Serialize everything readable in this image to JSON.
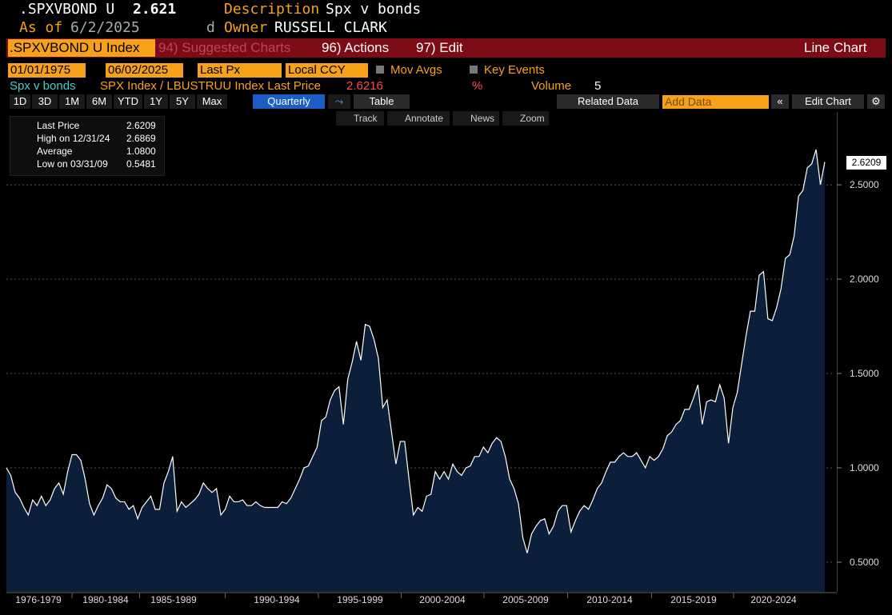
{
  "header": {
    "ticker": ".SPXVBOND U",
    "price": "2.621",
    "desc_label": "Description",
    "desc": "Spx v bonds",
    "asof_label": "As of",
    "asof": "6/2/2025",
    "flag": "d",
    "owner_label": "Owner",
    "owner": "RUSSELL CLARK"
  },
  "toolbar": {
    "security": ".SPXVBOND U Index",
    "suggested": "94) Suggested Charts",
    "actions": "96) Actions",
    "edit": "97) Edit",
    "chart_type": "Line Chart"
  },
  "controls": {
    "start": "01/01/1975",
    "end": "06/02/2025",
    "field": "Last Px",
    "ccy": "Local CCY",
    "mov_avgs": "Mov Avgs",
    "key_events": "Key Events"
  },
  "legend": {
    "name": "Spx v bonds",
    "desc": "SPX Index / LBUSTRUU Index Last Price",
    "last": "2.6216",
    "pct": "%",
    "volume_label": "Volume",
    "volume": "5"
  },
  "periods": [
    "1D",
    "3D",
    "1M",
    "6M",
    "YTD",
    "1Y",
    "5Y",
    "Max"
  ],
  "buttons": {
    "frequency": "Quarterly",
    "table": "Table",
    "related": "Related Data",
    "add": "Add Data",
    "edit_chart": "Edit Chart"
  },
  "tools": [
    "Track",
    "Annotate",
    "News",
    "Zoom"
  ],
  "stats": {
    "rows": [
      {
        "label": "Last Price",
        "value": "2.6209"
      },
      {
        "label": "High on 12/31/24",
        "value": "2.6869"
      },
      {
        "label": "Average",
        "value": "1.0800"
      },
      {
        "label": "Low on 03/31/09",
        "value": "0.5481"
      }
    ]
  },
  "chart_data": {
    "type": "line",
    "color": "#ffffff",
    "fill": "#0b1f3a",
    "values": [
      1.0,
      0.96,
      0.87,
      0.84,
      0.79,
      0.75,
      0.83,
      0.8,
      0.85,
      0.8,
      0.83,
      0.89,
      0.92,
      0.86,
      0.98,
      1.07,
      1.07,
      1.04,
      0.94,
      0.81,
      0.75,
      0.8,
      0.84,
      0.91,
      0.89,
      0.84,
      0.82,
      0.82,
      0.78,
      0.8,
      0.73,
      0.79,
      0.82,
      0.85,
      0.78,
      0.78,
      0.92,
      0.98,
      1.06,
      0.77,
      0.82,
      0.79,
      0.81,
      0.83,
      0.86,
      0.92,
      0.89,
      0.87,
      0.89,
      0.75,
      0.78,
      0.85,
      0.82,
      0.82,
      0.83,
      0.8,
      0.8,
      0.82,
      0.8,
      0.79,
      0.79,
      0.79,
      0.79,
      0.82,
      0.81,
      0.84,
      0.89,
      0.94,
      1.0,
      1.01,
      1.06,
      1.11,
      1.25,
      1.27,
      1.36,
      1.41,
      1.43,
      1.23,
      1.47,
      1.56,
      1.67,
      1.57,
      1.76,
      1.75,
      1.68,
      1.58,
      1.32,
      1.36,
      1.19,
      1.02,
      1.14,
      1.14,
      0.94,
      0.75,
      0.79,
      0.77,
      0.85,
      0.86,
      0.98,
      0.94,
      0.98,
      0.94,
      1.02,
      0.98,
      0.96,
      1.0,
      1.01,
      1.06,
      1.06,
      1.11,
      1.08,
      1.13,
      1.16,
      1.14,
      1.06,
      0.94,
      0.89,
      0.81,
      0.63,
      0.5481,
      0.65,
      0.69,
      0.72,
      0.73,
      0.65,
      0.69,
      0.77,
      0.8,
      0.8,
      0.66,
      0.72,
      0.77,
      0.8,
      0.78,
      0.83,
      0.89,
      0.92,
      0.98,
      1.03,
      1.03,
      1.06,
      1.08,
      1.06,
      1.06,
      1.08,
      1.04,
      1.0,
      1.06,
      1.04,
      1.06,
      1.1,
      1.17,
      1.19,
      1.23,
      1.25,
      1.31,
      1.31,
      1.37,
      1.44,
      1.23,
      1.35,
      1.36,
      1.35,
      1.44,
      1.37,
      1.13,
      1.32,
      1.4,
      1.55,
      1.7,
      1.83,
      1.83,
      2.02,
      2.04,
      1.79,
      1.78,
      1.85,
      1.95,
      2.11,
      2.13,
      2.23,
      2.44,
      2.47,
      2.59,
      2.61,
      2.6869,
      2.5,
      2.6209
    ],
    "ylim": [
      0.343,
      2.886
    ],
    "yticks": [
      {
        "value": 0.5,
        "label": "0.5000"
      },
      {
        "value": 1.0,
        "label": "1.0000"
      },
      {
        "value": 1.5,
        "label": "1.5000"
      },
      {
        "value": 2.0,
        "label": "2.0000"
      },
      {
        "value": 2.5,
        "label": "2.5000"
      }
    ],
    "xtick_labels": [
      "1976-1979",
      "1980-1984",
      "1985-1989",
      "1990-1994",
      "1995-1999",
      "2000-2004",
      "2005-2009",
      "2010-2014",
      "2015-2019",
      "2020-2024"
    ],
    "grid": true
  }
}
